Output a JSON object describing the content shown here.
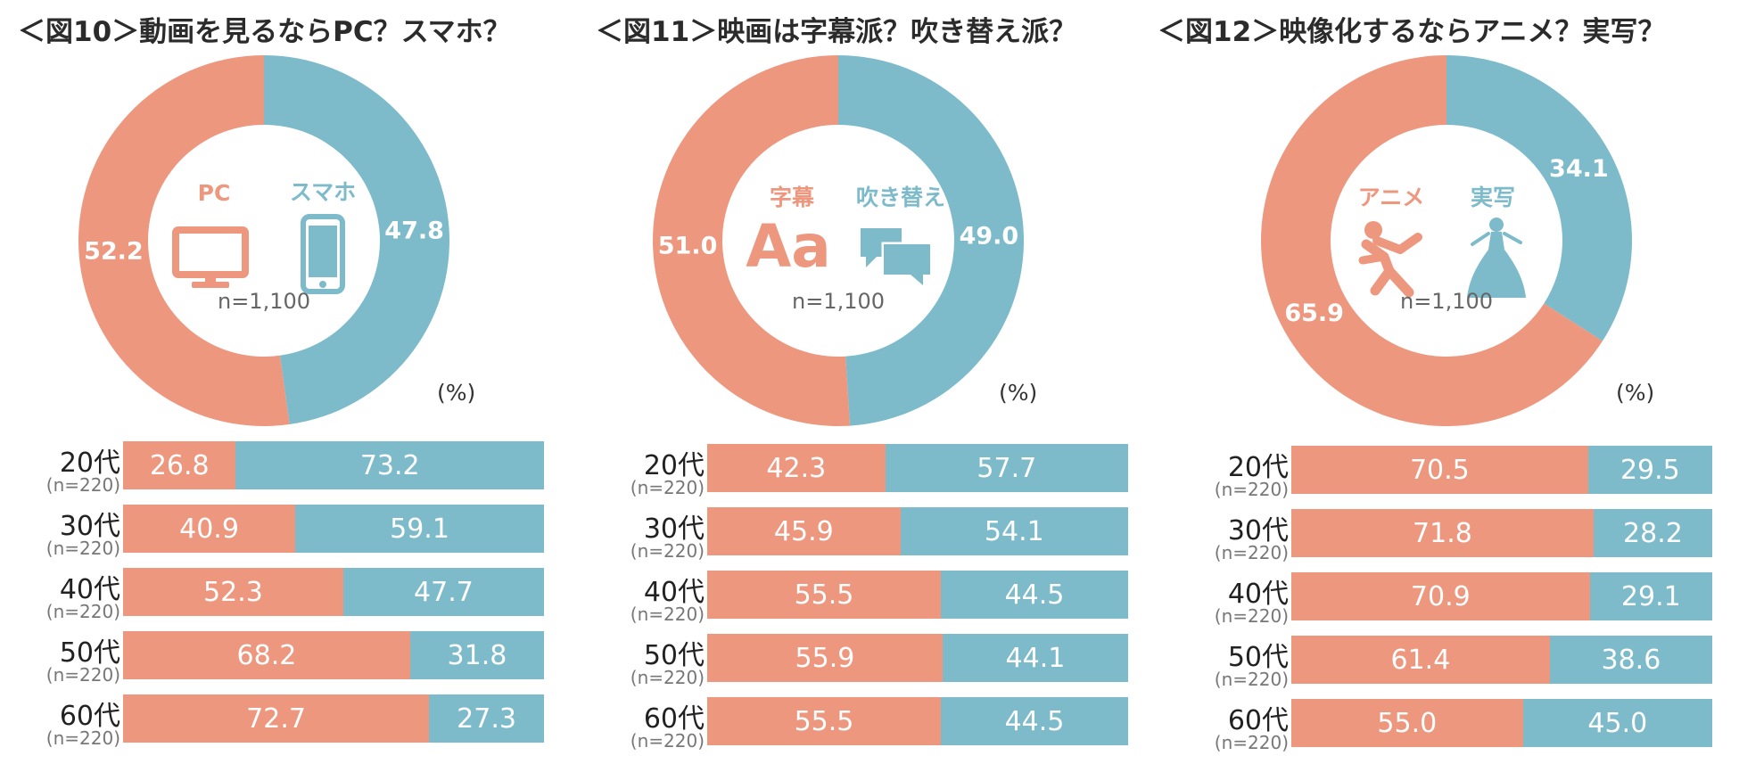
{
  "colors": {
    "left": "#EE977F",
    "right": "#7DBBCB"
  },
  "percent_unit": "(%)",
  "chart_data": [
    {
      "type": "donut+stacked-bar",
      "title": "＜図10＞動画を見るならPC？スマホ？",
      "center": {
        "left_label": "PC",
        "right_label": "スマホ",
        "left_icon": "monitor-icon",
        "right_icon": "smartphone-icon",
        "n": "n=1,100"
      },
      "donut": [
        {
          "name": "PC",
          "value": 52.2,
          "label": "52.2"
        },
        {
          "name": "スマホ",
          "value": 47.8,
          "label": "47.8"
        }
      ],
      "bars": [
        {
          "age": "20代",
          "n": "(n=220)",
          "left": 26.8,
          "right": 73.2,
          "left_label": "26.8",
          "right_label": "73.2"
        },
        {
          "age": "30代",
          "n": "(n=220)",
          "left": 40.9,
          "right": 59.1,
          "left_label": "40.9",
          "right_label": "59.1"
        },
        {
          "age": "40代",
          "n": "(n=220)",
          "left": 52.3,
          "right": 47.7,
          "left_label": "52.3",
          "right_label": "47.7"
        },
        {
          "age": "50代",
          "n": "(n=220)",
          "left": 68.2,
          "right": 31.8,
          "left_label": "68.2",
          "right_label": "31.8"
        },
        {
          "age": "60代",
          "n": "(n=220)",
          "left": 72.7,
          "right": 27.3,
          "left_label": "72.7",
          "right_label": "27.3"
        }
      ]
    },
    {
      "type": "donut+stacked-bar",
      "title": "＜図11＞映画は字幕派？吹き替え派？",
      "center": {
        "left_label": "字幕",
        "right_label": "吹き替え",
        "left_icon": "text-aa-icon",
        "right_icon": "speech-bubbles-icon",
        "n": "n=1,100"
      },
      "left_icon_text": "Aa",
      "donut": [
        {
          "name": "字幕",
          "value": 51.0,
          "label": "51.0"
        },
        {
          "name": "吹き替え",
          "value": 49.0,
          "label": "49.0"
        }
      ],
      "bars": [
        {
          "age": "20代",
          "n": "(n=220)",
          "left": 42.3,
          "right": 57.7,
          "left_label": "42.3",
          "right_label": "57.7"
        },
        {
          "age": "30代",
          "n": "(n=220)",
          "left": 45.9,
          "right": 54.1,
          "left_label": "45.9",
          "right_label": "54.1"
        },
        {
          "age": "40代",
          "n": "(n=220)",
          "left": 55.5,
          "right": 44.5,
          "left_label": "55.5",
          "right_label": "44.5"
        },
        {
          "age": "50代",
          "n": "(n=220)",
          "left": 55.9,
          "right": 44.1,
          "left_label": "55.9",
          "right_label": "44.1"
        },
        {
          "age": "60代",
          "n": "(n=220)",
          "left": 55.5,
          "right": 44.5,
          "left_label": "55.5",
          "right_label": "44.5"
        }
      ]
    },
    {
      "type": "donut+stacked-bar",
      "title": "＜図12＞映像化するならアニメ？実写？",
      "center": {
        "left_label": "アニメ",
        "right_label": "実写",
        "left_icon": "running-figure-icon",
        "right_icon": "princess-dress-icon",
        "n": "n=1,100"
      },
      "donut": [
        {
          "name": "アニメ",
          "value": 65.9,
          "label": "65.9"
        },
        {
          "name": "実写",
          "value": 34.1,
          "label": "34.1"
        }
      ],
      "bars": [
        {
          "age": "20代",
          "n": "(n=220)",
          "left": 70.5,
          "right": 29.5,
          "left_label": "70.5",
          "right_label": "29.5"
        },
        {
          "age": "30代",
          "n": "(n=220)",
          "left": 71.8,
          "right": 28.2,
          "left_label": "71.8",
          "right_label": "28.2"
        },
        {
          "age": "40代",
          "n": "(n=220)",
          "left": 70.9,
          "right": 29.1,
          "left_label": "70.9",
          "right_label": "29.1"
        },
        {
          "age": "50代",
          "n": "(n=220)",
          "left": 61.4,
          "right": 38.6,
          "left_label": "61.4",
          "right_label": "38.6"
        },
        {
          "age": "60代",
          "n": "(n=220)",
          "left": 55.0,
          "right": 45.0,
          "left_label": "55.0",
          "right_label": "45.0"
        }
      ]
    }
  ]
}
